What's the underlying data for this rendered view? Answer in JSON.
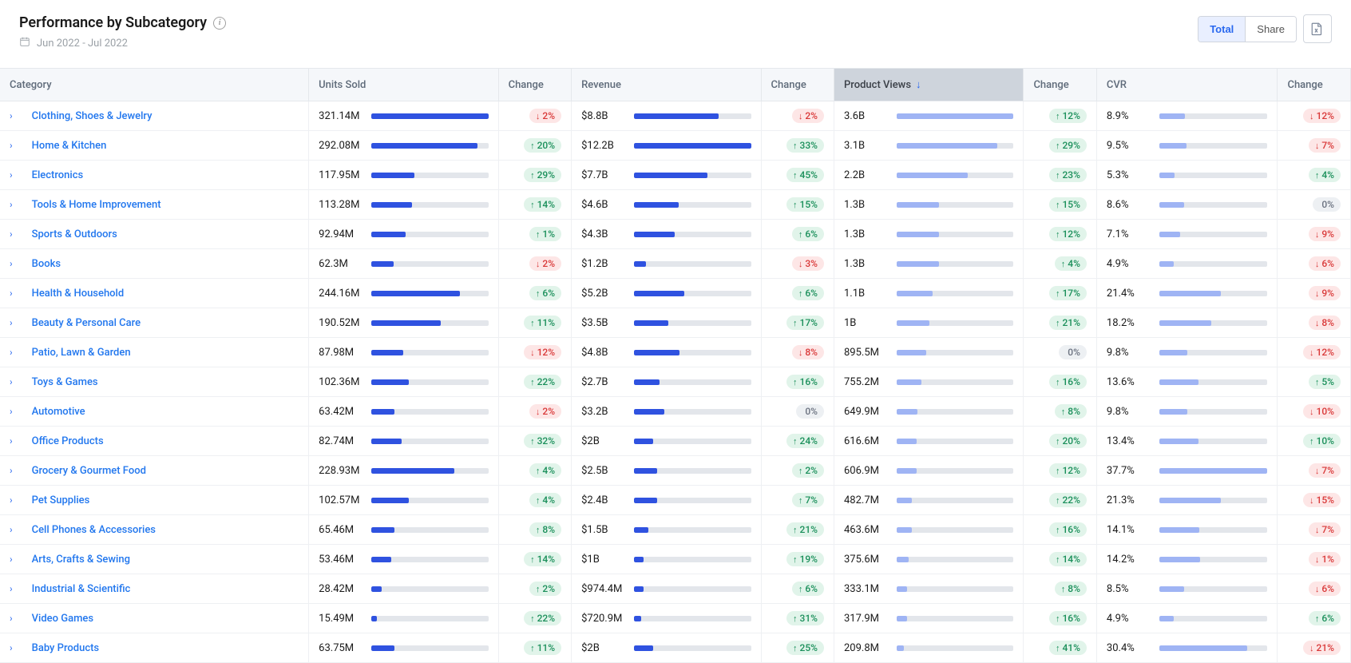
{
  "header": {
    "title": "Performance by Subcategory",
    "date_range": "Jun 2022 - Jul 2022"
  },
  "toggle": {
    "total": "Total",
    "share": "Share"
  },
  "columns": {
    "category": "Category",
    "units_sold": "Units Sold",
    "change": "Change",
    "revenue": "Revenue",
    "views": "Product Views",
    "cvr": "CVR"
  },
  "bar_dark": "#2f52e0",
  "bar_light": "#9fb4f4",
  "rows": [
    {
      "cat": "Clothing, Shoes & Jewelry",
      "units": "321.14M",
      "units_bar": 100,
      "units_chg": -2,
      "rev": "$8.8B",
      "rev_bar": 72,
      "rev_chg": -2,
      "views": "3.6B",
      "views_bar": 100,
      "views_chg": 12,
      "cvr": "8.9%",
      "cvr_bar": 24,
      "cvr_chg": -12
    },
    {
      "cat": "Home & Kitchen",
      "units": "292.08M",
      "units_bar": 91,
      "units_chg": 20,
      "rev": "$12.2B",
      "rev_bar": 100,
      "rev_chg": 33,
      "views": "3.1B",
      "views_bar": 86,
      "views_chg": 29,
      "cvr": "9.5%",
      "cvr_bar": 25,
      "cvr_chg": -7
    },
    {
      "cat": "Electronics",
      "units": "117.95M",
      "units_bar": 37,
      "units_chg": 29,
      "rev": "$7.7B",
      "rev_bar": 63,
      "rev_chg": 45,
      "views": "2.2B",
      "views_bar": 61,
      "views_chg": 23,
      "cvr": "5.3%",
      "cvr_bar": 14,
      "cvr_chg": 4
    },
    {
      "cat": "Tools & Home Improvement",
      "units": "113.28M",
      "units_bar": 35,
      "units_chg": 14,
      "rev": "$4.6B",
      "rev_bar": 38,
      "rev_chg": 15,
      "views": "1.3B",
      "views_bar": 36,
      "views_chg": 15,
      "cvr": "8.6%",
      "cvr_bar": 23,
      "cvr_chg": 0
    },
    {
      "cat": "Sports & Outdoors",
      "units": "92.94M",
      "units_bar": 29,
      "units_chg": 1,
      "rev": "$4.3B",
      "rev_bar": 35,
      "rev_chg": 6,
      "views": "1.3B",
      "views_bar": 36,
      "views_chg": 12,
      "cvr": "7.1%",
      "cvr_bar": 19,
      "cvr_chg": -9
    },
    {
      "cat": "Books",
      "units": "62.3M",
      "units_bar": 19,
      "units_chg": -2,
      "rev": "$1.2B",
      "rev_bar": 10,
      "rev_chg": -3,
      "views": "1.3B",
      "views_bar": 36,
      "views_chg": 4,
      "cvr": "4.9%",
      "cvr_bar": 13,
      "cvr_chg": -6
    },
    {
      "cat": "Health & Household",
      "units": "244.16M",
      "units_bar": 76,
      "units_chg": 6,
      "rev": "$5.2B",
      "rev_bar": 43,
      "rev_chg": 6,
      "views": "1.1B",
      "views_bar": 31,
      "views_chg": 17,
      "cvr": "21.4%",
      "cvr_bar": 57,
      "cvr_chg": -9
    },
    {
      "cat": "Beauty & Personal Care",
      "units": "190.52M",
      "units_bar": 59,
      "units_chg": 11,
      "rev": "$3.5B",
      "rev_bar": 29,
      "rev_chg": 17,
      "views": "1B",
      "views_bar": 28,
      "views_chg": 21,
      "cvr": "18.2%",
      "cvr_bar": 48,
      "cvr_chg": -8
    },
    {
      "cat": "Patio, Lawn & Garden",
      "units": "87.98M",
      "units_bar": 27,
      "units_chg": -12,
      "rev": "$4.8B",
      "rev_bar": 39,
      "rev_chg": -8,
      "views": "895.5M",
      "views_bar": 25,
      "views_chg": 0,
      "cvr": "9.8%",
      "cvr_bar": 26,
      "cvr_chg": -12
    },
    {
      "cat": "Toys & Games",
      "units": "102.36M",
      "units_bar": 32,
      "units_chg": 22,
      "rev": "$2.7B",
      "rev_bar": 22,
      "rev_chg": 16,
      "views": "755.2M",
      "views_bar": 21,
      "views_chg": 16,
      "cvr": "13.6%",
      "cvr_bar": 36,
      "cvr_chg": 5
    },
    {
      "cat": "Automotive",
      "units": "63.42M",
      "units_bar": 20,
      "units_chg": -2,
      "rev": "$3.2B",
      "rev_bar": 26,
      "rev_chg": 0,
      "views": "649.9M",
      "views_bar": 18,
      "views_chg": 8,
      "cvr": "9.8%",
      "cvr_bar": 26,
      "cvr_chg": -10
    },
    {
      "cat": "Office Products",
      "units": "82.74M",
      "units_bar": 26,
      "units_chg": 32,
      "rev": "$2B",
      "rev_bar": 16,
      "rev_chg": 24,
      "views": "616.6M",
      "views_bar": 17,
      "views_chg": 20,
      "cvr": "13.4%",
      "cvr_bar": 36,
      "cvr_chg": 10
    },
    {
      "cat": "Grocery & Gourmet Food",
      "units": "228.93M",
      "units_bar": 71,
      "units_chg": 4,
      "rev": "$2.5B",
      "rev_bar": 20,
      "rev_chg": 2,
      "views": "606.9M",
      "views_bar": 17,
      "views_chg": 12,
      "cvr": "37.7%",
      "cvr_bar": 100,
      "cvr_chg": -7
    },
    {
      "cat": "Pet Supplies",
      "units": "102.57M",
      "units_bar": 32,
      "units_chg": 4,
      "rev": "$2.4B",
      "rev_bar": 20,
      "rev_chg": 7,
      "views": "482.7M",
      "views_bar": 13,
      "views_chg": 22,
      "cvr": "21.3%",
      "cvr_bar": 57,
      "cvr_chg": -15
    },
    {
      "cat": "Cell Phones & Accessories",
      "units": "65.46M",
      "units_bar": 20,
      "units_chg": 8,
      "rev": "$1.5B",
      "rev_bar": 12,
      "rev_chg": 21,
      "views": "463.6M",
      "views_bar": 13,
      "views_chg": 16,
      "cvr": "14.1%",
      "cvr_bar": 37,
      "cvr_chg": -7
    },
    {
      "cat": "Arts, Crafts & Sewing",
      "units": "53.46M",
      "units_bar": 17,
      "units_chg": 14,
      "rev": "$1B",
      "rev_bar": 8,
      "rev_chg": 19,
      "views": "375.6M",
      "views_bar": 10,
      "views_chg": 14,
      "cvr": "14.2%",
      "cvr_bar": 38,
      "cvr_chg": -1
    },
    {
      "cat": "Industrial & Scientific",
      "units": "28.42M",
      "units_bar": 9,
      "units_chg": 2,
      "rev": "$974.4M",
      "rev_bar": 8,
      "rev_chg": 6,
      "views": "333.1M",
      "views_bar": 9,
      "views_chg": 8,
      "cvr": "8.5%",
      "cvr_bar": 23,
      "cvr_chg": -6
    },
    {
      "cat": "Video Games",
      "units": "15.49M",
      "units_bar": 5,
      "units_chg": 22,
      "rev": "$720.9M",
      "rev_bar": 6,
      "rev_chg": 31,
      "views": "317.9M",
      "views_bar": 9,
      "views_chg": 16,
      "cvr": "4.9%",
      "cvr_bar": 13,
      "cvr_chg": 6
    },
    {
      "cat": "Baby Products",
      "units": "63.75M",
      "units_bar": 20,
      "units_chg": 11,
      "rev": "$2B",
      "rev_bar": 16,
      "rev_chg": 25,
      "views": "209.8M",
      "views_bar": 6,
      "views_chg": 41,
      "cvr": "30.4%",
      "cvr_bar": 81,
      "cvr_chg": -21
    }
  ]
}
